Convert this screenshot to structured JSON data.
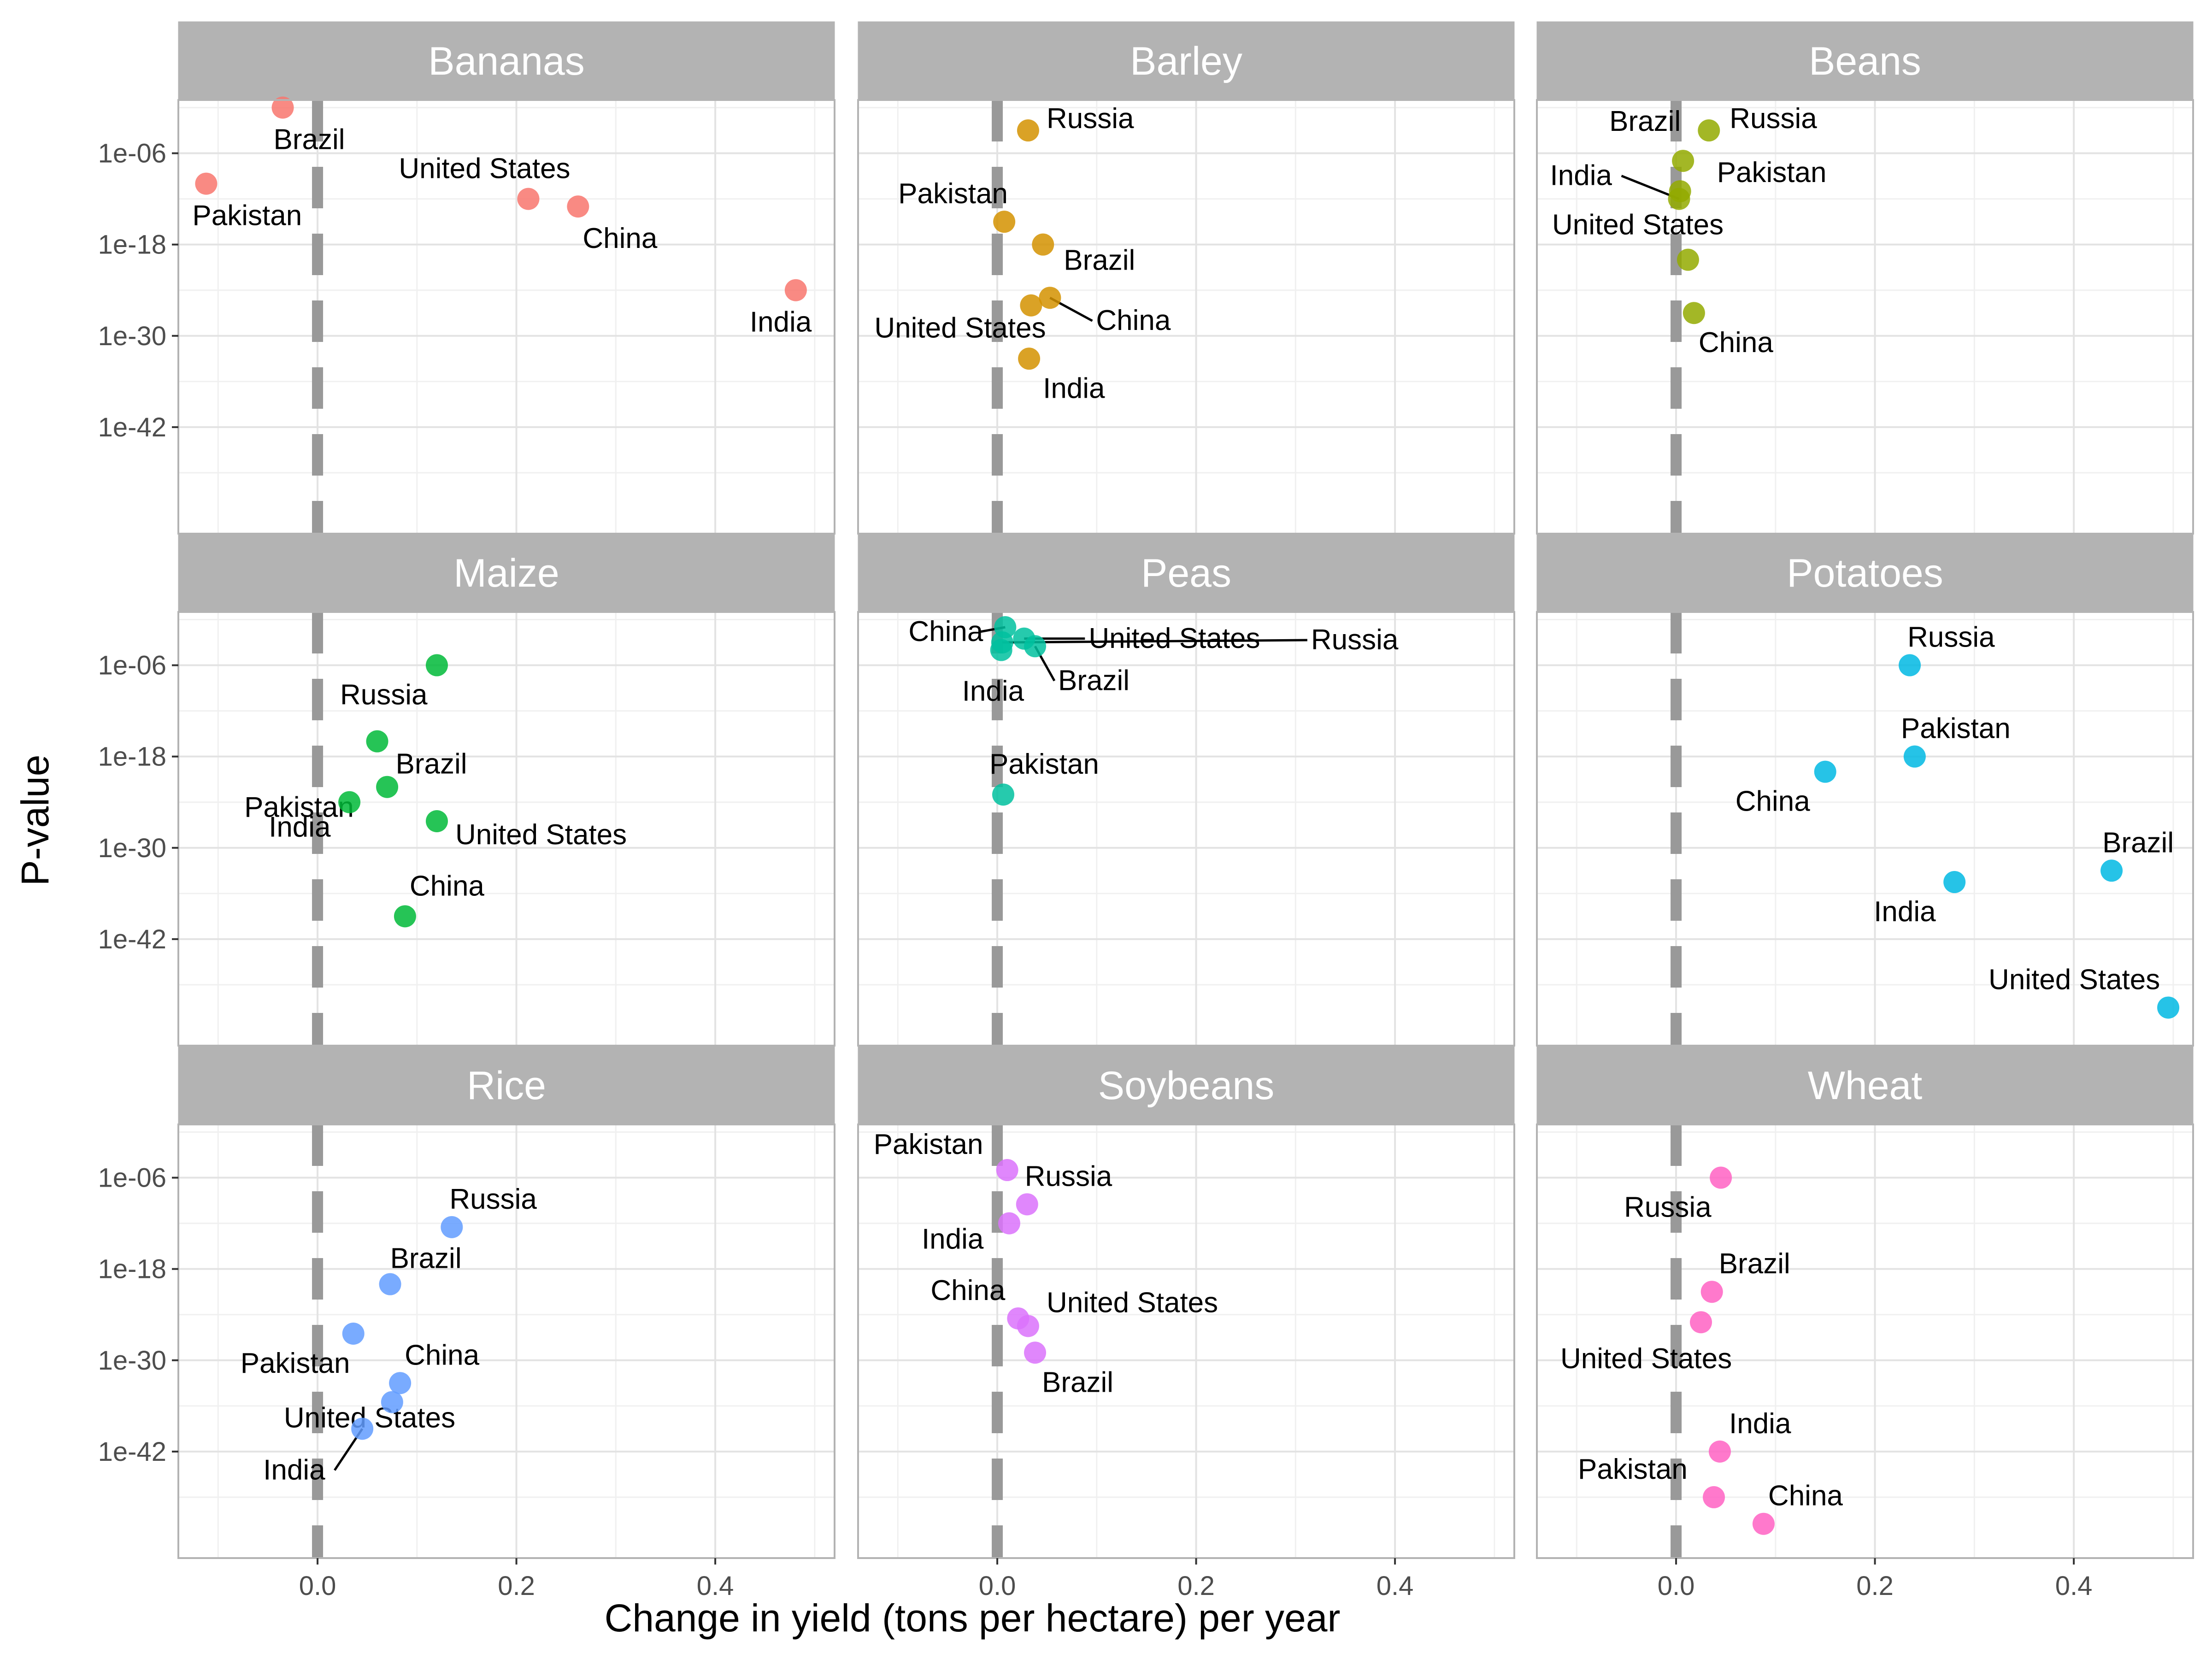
{
  "chart_data": {
    "type": "scatter",
    "facet_layout": "3x3 grid, shared axes",
    "xlabel": "Change in yield (tons per hectare) per year",
    "ylabel": "P-value",
    "x_ticks": [
      "0.0",
      "0.2",
      "0.4"
    ],
    "x_tick_values": [
      0.0,
      0.2,
      0.4
    ],
    "xlim": [
      -0.14,
      0.52
    ],
    "y_scale": "log10, reversed",
    "y_ticks": [
      "1e-06",
      "1e-18",
      "1e-30",
      "1e-42"
    ],
    "y_tick_exponents": [
      -6,
      -18,
      -30,
      -42
    ],
    "ylim_exponent": [
      1,
      -56
    ],
    "reference_line": {
      "x": 0,
      "style": "dashed",
      "color": "#999999"
    },
    "grid": true,
    "legend": "none",
    "panels": [
      {
        "name": "Bananas",
        "color": "#F8766D",
        "points": [
          {
            "country": "Brazil",
            "x": -0.035,
            "exp": 0
          },
          {
            "country": "Pakistan",
            "x": -0.112,
            "exp": -10
          },
          {
            "country": "United States",
            "x": 0.212,
            "exp": -12
          },
          {
            "country": "China",
            "x": 0.262,
            "exp": -13
          },
          {
            "country": "India",
            "x": 0.481,
            "exp": -24
          }
        ]
      },
      {
        "name": "Barley",
        "color": "#D39200",
        "points": [
          {
            "country": "Russia",
            "x": 0.031,
            "exp": -3
          },
          {
            "country": "Pakistan",
            "x": 0.007,
            "exp": -15
          },
          {
            "country": "Brazil",
            "x": 0.046,
            "exp": -18
          },
          {
            "country": "China",
            "x": 0.053,
            "exp": -25
          },
          {
            "country": "United States",
            "x": 0.034,
            "exp": -26
          },
          {
            "country": "India",
            "x": 0.032,
            "exp": -33
          }
        ]
      },
      {
        "name": "Beans",
        "color": "#93AA00",
        "points": [
          {
            "country": "Russia",
            "x": 0.033,
            "exp": -3
          },
          {
            "country": "Brazil",
            "x": 0.007,
            "exp": -7
          },
          {
            "country": "Pakistan",
            "x": 0.004,
            "exp": -11
          },
          {
            "country": "India",
            "x": 0.003,
            "exp": -12
          },
          {
            "country": "United States",
            "x": 0.012,
            "exp": -20
          },
          {
            "country": "China",
            "x": 0.018,
            "exp": -27
          }
        ]
      },
      {
        "name": "Maize",
        "color": "#00BA38",
        "points": [
          {
            "country": "Russia",
            "x": 0.12,
            "exp": -6
          },
          {
            "country": "Brazil",
            "x": 0.06,
            "exp": -16
          },
          {
            "country": "Pakistan",
            "x": 0.07,
            "exp": -22
          },
          {
            "country": "India",
            "x": 0.032,
            "exp": -24
          },
          {
            "country": "United States",
            "x": 0.12,
            "exp": -26.5
          },
          {
            "country": "China",
            "x": 0.088,
            "exp": -39
          }
        ]
      },
      {
        "name": "Peas",
        "color": "#00C19F",
        "points": [
          {
            "country": "China",
            "x": 0.008,
            "exp": -1
          },
          {
            "country": "United States",
            "x": 0.027,
            "exp": -2.5
          },
          {
            "country": "Russia",
            "x": 0.005,
            "exp": -3
          },
          {
            "country": "Brazil",
            "x": 0.038,
            "exp": -3.5
          },
          {
            "country": "India",
            "x": 0.004,
            "exp": -4
          },
          {
            "country": "Pakistan",
            "x": 0.006,
            "exp": -23
          }
        ]
      },
      {
        "name": "Potatoes",
        "color": "#00B9E3",
        "points": [
          {
            "country": "Russia",
            "x": 0.235,
            "exp": -6
          },
          {
            "country": "Pakistan",
            "x": 0.24,
            "exp": -18
          },
          {
            "country": "China",
            "x": 0.15,
            "exp": -20
          },
          {
            "country": "Brazil",
            "x": 0.438,
            "exp": -33
          },
          {
            "country": "India",
            "x": 0.28,
            "exp": -34.5
          },
          {
            "country": "United States",
            "x": 0.495,
            "exp": -51
          }
        ]
      },
      {
        "name": "Rice",
        "color": "#619CFF",
        "points": [
          {
            "country": "Russia",
            "x": 0.135,
            "exp": -12.5
          },
          {
            "country": "Brazil",
            "x": 0.073,
            "exp": -20
          },
          {
            "country": "Pakistan",
            "x": 0.036,
            "exp": -26.5
          },
          {
            "country": "China",
            "x": 0.083,
            "exp": -33
          },
          {
            "country": "United States",
            "x": 0.075,
            "exp": -35.5
          },
          {
            "country": "India",
            "x": 0.045,
            "exp": -39
          }
        ]
      },
      {
        "name": "Soybeans",
        "color": "#DB72FB",
        "points": [
          {
            "country": "Pakistan",
            "x": 0.01,
            "exp": -5
          },
          {
            "country": "Russia",
            "x": 0.03,
            "exp": -9.5
          },
          {
            "country": "India",
            "x": 0.012,
            "exp": -12
          },
          {
            "country": "China",
            "x": 0.021,
            "exp": -24.5
          },
          {
            "country": "United States",
            "x": 0.031,
            "exp": -25.5
          },
          {
            "country": "Brazil",
            "x": 0.038,
            "exp": -29
          }
        ]
      },
      {
        "name": "Wheat",
        "color": "#FF61C3",
        "points": [
          {
            "country": "Russia",
            "x": 0.045,
            "exp": -6
          },
          {
            "country": "Brazil",
            "x": 0.036,
            "exp": -21
          },
          {
            "country": "United States",
            "x": 0.025,
            "exp": -25
          },
          {
            "country": "India",
            "x": 0.044,
            "exp": -42
          },
          {
            "country": "Pakistan",
            "x": 0.038,
            "exp": -48
          },
          {
            "country": "China",
            "x": 0.088,
            "exp": -51.5
          }
        ]
      }
    ]
  }
}
